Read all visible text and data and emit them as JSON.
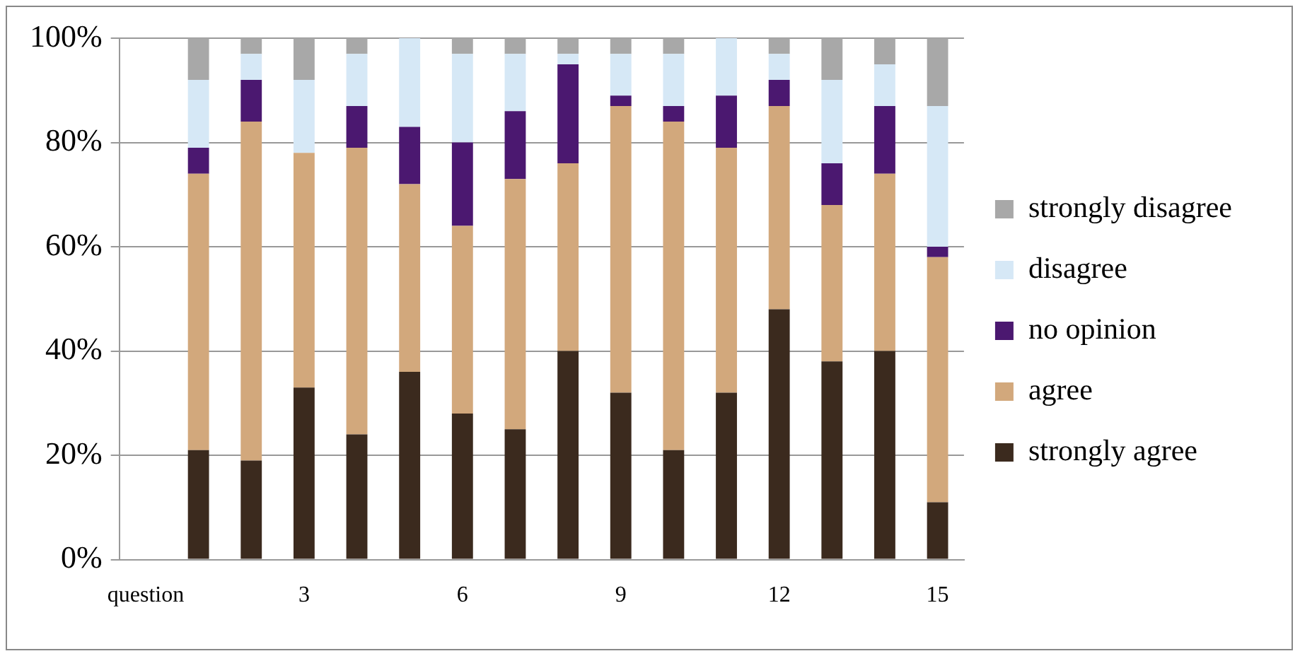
{
  "chart_data": {
    "type": "bar",
    "stacked": true,
    "categories": [
      "question",
      null,
      null,
      "3",
      null,
      null,
      "6",
      null,
      null,
      "9",
      null,
      null,
      "12",
      null,
      null,
      "15"
    ],
    "series": [
      {
        "name": "strongly agree",
        "color": "#3b2a1e",
        "values": [
          null,
          21,
          19,
          33,
          24,
          36,
          28,
          25,
          40,
          32,
          21,
          32,
          48,
          38,
          40,
          11
        ]
      },
      {
        "name": "agree",
        "color": "#d2a87c",
        "values": [
          null,
          53,
          65,
          45,
          55,
          36,
          36,
          48,
          36,
          55,
          63,
          47,
          39,
          30,
          34,
          47
        ]
      },
      {
        "name": "no opinion",
        "color": "#4b1870",
        "values": [
          null,
          5,
          8,
          0,
          8,
          11,
          16,
          13,
          19,
          2,
          3,
          10,
          5,
          8,
          13,
          2
        ]
      },
      {
        "name": "disagree",
        "color": "#d6e8f6",
        "values": [
          null,
          13,
          5,
          14,
          10,
          17,
          17,
          11,
          2,
          8,
          10,
          11,
          5,
          16,
          8,
          27
        ]
      },
      {
        "name": "strongly disagree",
        "color": "#a8a8a8",
        "values": [
          null,
          8,
          3,
          8,
          3,
          0,
          3,
          3,
          3,
          3,
          3,
          0,
          3,
          8,
          5,
          13
        ]
      }
    ],
    "ylim": [
      0,
      100
    ],
    "yticks": [
      {
        "value": 0,
        "label": "0%"
      },
      {
        "value": 20,
        "label": "20%"
      },
      {
        "value": 40,
        "label": "40%"
      },
      {
        "value": 60,
        "label": "60%"
      },
      {
        "value": 80,
        "label": "80%"
      },
      {
        "value": 100,
        "label": "100%"
      }
    ],
    "grid": "y",
    "legend": "right"
  }
}
